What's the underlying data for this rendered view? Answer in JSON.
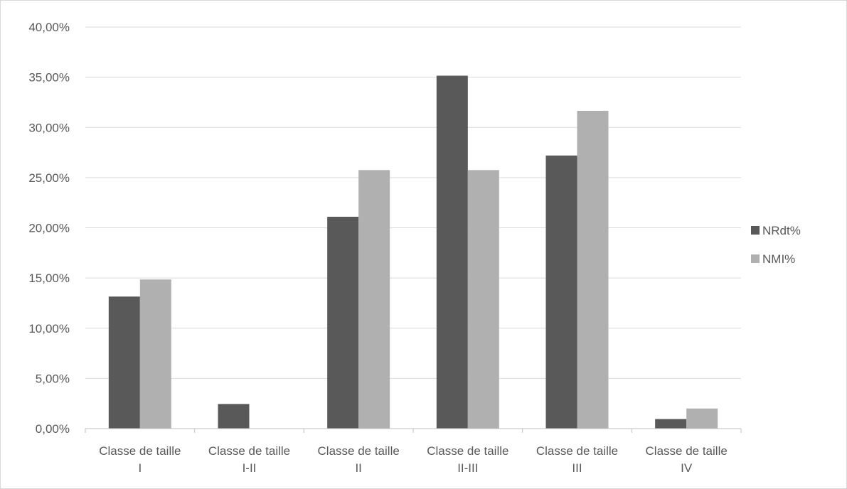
{
  "chart_data": {
    "type": "bar",
    "categories": [
      [
        "Classe de taille",
        "I"
      ],
      [
        "Classe de taille",
        "I-II"
      ],
      [
        "Classe de taille",
        "II"
      ],
      [
        "Classe de taille",
        "II-III"
      ],
      [
        "Classe de taille",
        "III"
      ],
      [
        "Classe de taille",
        "IV"
      ]
    ],
    "series": [
      {
        "name": "NRdt%",
        "color": "#595959",
        "values": [
          13.15,
          2.45,
          21.1,
          35.15,
          27.2,
          0.95
        ]
      },
      {
        "name": "NMI%",
        "color": "#b0b0b0",
        "values": [
          14.85,
          0,
          25.75,
          25.75,
          31.65,
          2.0
        ]
      }
    ],
    "ylim": [
      0,
      40
    ],
    "yticks": [
      0,
      5,
      10,
      15,
      20,
      25,
      30,
      35,
      40
    ],
    "ytick_labels": [
      "0,00%",
      "5,00%",
      "10,00%",
      "15,00%",
      "20,00%",
      "25,00%",
      "30,00%",
      "35,00%",
      "40,00%"
    ],
    "grid": true,
    "legend_position": "right"
  }
}
